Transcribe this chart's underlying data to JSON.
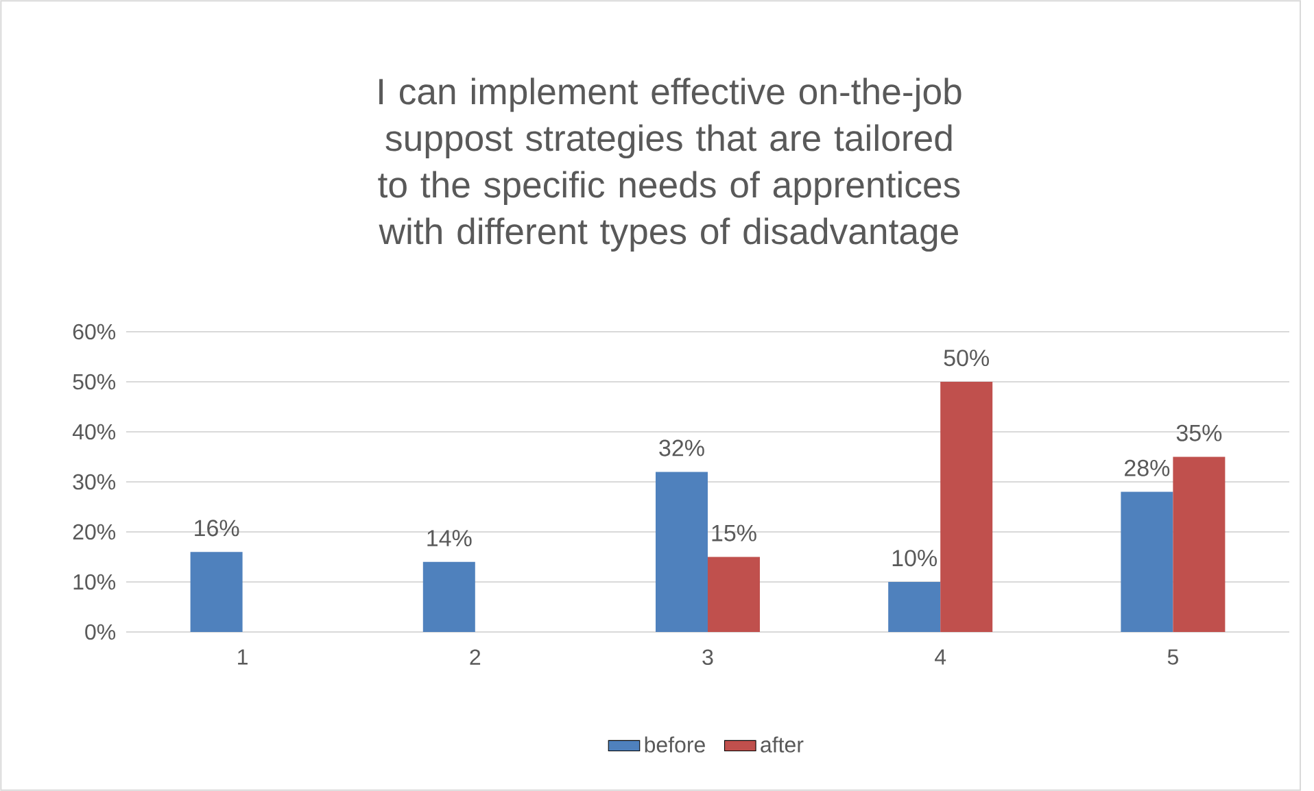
{
  "chart_data": {
    "type": "bar",
    "title": "I can implement effective on-the-job suppost strategies that are tailored to the specific needs of apprentices with different types of disadvantage",
    "categories": [
      "1",
      "2",
      "3",
      "4",
      "5"
    ],
    "series": [
      {
        "name": "before",
        "color": "#4f81bd",
        "values": [
          16,
          14,
          32,
          10,
          28
        ],
        "value_labels": [
          "16%",
          "14%",
          "32%",
          "10%",
          "28%"
        ]
      },
      {
        "name": "after",
        "color": "#c0504d",
        "values": [
          null,
          null,
          15,
          50,
          35
        ],
        "value_labels": [
          null,
          null,
          "15%",
          "50%",
          "35%"
        ]
      }
    ],
    "ylim": [
      0,
      60
    ],
    "yticks": [
      {
        "value": 0,
        "label": "0%"
      },
      {
        "value": 10,
        "label": "10%"
      },
      {
        "value": 20,
        "label": "20%"
      },
      {
        "value": 30,
        "label": "30%"
      },
      {
        "value": 40,
        "label": "40%"
      },
      {
        "value": 50,
        "label": "50%"
      },
      {
        "value": 60,
        "label": "60%"
      }
    ],
    "grid": "y",
    "legend": "bottom"
  }
}
